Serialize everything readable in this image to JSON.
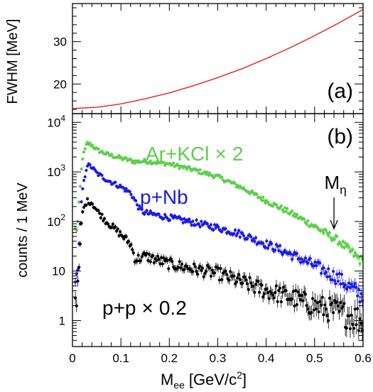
{
  "chart_data": [
    {
      "panel": "(a)",
      "type": "line",
      "xlabel": "",
      "ylabel": "FWHM [MeV]",
      "xlim": [
        0,
        0.6
      ],
      "ylim": [
        13,
        39
      ],
      "y_ticks": [
        20,
        30
      ],
      "colors": {
        "curve": "#e8201c"
      },
      "series": [
        {
          "x": [
            0,
            0.05,
            0.1,
            0.15,
            0.2,
            0.25,
            0.3,
            0.35,
            0.4,
            0.45,
            0.5,
            0.55,
            0.6
          ],
          "values": [
            14.2,
            14.5,
            15.3,
            16.5,
            17.9,
            19.6,
            21.5,
            23.6,
            26.0,
            28.6,
            31.4,
            34.4,
            37.6
          ]
        }
      ]
    },
    {
      "panel": "(b)",
      "type": "scatter",
      "xlabel_main": "M",
      "xlabel_sub": "ee",
      "xlabel_units": "[GeV/c",
      "xlabel_sup": "2",
      "xlabel_close": "]",
      "ylabel": "counts / 1 MeV",
      "xlim": [
        0,
        0.6
      ],
      "ylim": [
        0.3,
        15000
      ],
      "yscale": "log",
      "x_ticks": [
        "0",
        "0.1",
        "0.2",
        "0.3",
        "0.4",
        "0.5",
        "0.6"
      ],
      "y_ticks": [
        {
          "value": 10000,
          "base": "10",
          "exp": "4"
        },
        {
          "value": 1000,
          "base": "10",
          "exp": "3"
        },
        {
          "value": 100,
          "base": "10",
          "exp": "2"
        },
        {
          "value": 10,
          "base": "10",
          "exp": ""
        },
        {
          "value": 1,
          "base": "1",
          "exp": ""
        }
      ],
      "annotation": {
        "main": "M",
        "sub": "η",
        "x": 0.54
      },
      "series": [
        {
          "label_main": "Ar+KCl",
          "label_times": "×",
          "label_factor": "2",
          "color": "#5ccf4a",
          "x": [
            0.01,
            0.02,
            0.03,
            0.04,
            0.05,
            0.07,
            0.1,
            0.13,
            0.15,
            0.2,
            0.25,
            0.3,
            0.35,
            0.4,
            0.45,
            0.5,
            0.55,
            0.6
          ],
          "values": [
            70,
            1800,
            3800,
            3500,
            2800,
            2300,
            1900,
            1600,
            1650,
            1450,
            1100,
            800,
            480,
            260,
            150,
            80,
            40,
            15
          ]
        },
        {
          "label_main": "p+Nb",
          "label_times": "",
          "label_factor": "",
          "color": "#1a1ae6",
          "x": [
            0.01,
            0.02,
            0.03,
            0.04,
            0.05,
            0.07,
            0.1,
            0.12,
            0.14,
            0.15,
            0.2,
            0.25,
            0.3,
            0.35,
            0.4,
            0.45,
            0.5,
            0.55,
            0.6
          ],
          "values": [
            8,
            400,
            1400,
            1250,
            950,
            700,
            500,
            380,
            170,
            150,
            120,
            95,
            75,
            55,
            35,
            22,
            13,
            7,
            3
          ]
        },
        {
          "label_main": "p+p",
          "label_times": "×",
          "label_factor": "0.2",
          "color": "#000000",
          "x": [
            0.01,
            0.02,
            0.03,
            0.04,
            0.05,
            0.07,
            0.1,
            0.12,
            0.13,
            0.15,
            0.2,
            0.25,
            0.3,
            0.35,
            0.4,
            0.45,
            0.5,
            0.55,
            0.6
          ],
          "values": [
            3,
            150,
            260,
            240,
            170,
            100,
            55,
            35,
            17,
            20,
            14,
            11,
            9,
            6,
            4,
            3,
            2,
            1.5,
            1
          ]
        }
      ]
    }
  ]
}
